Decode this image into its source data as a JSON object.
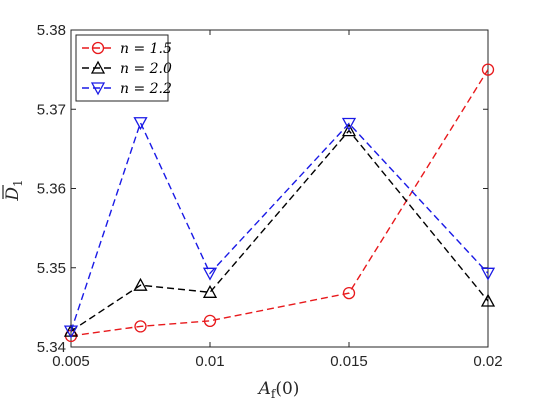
{
  "chart_data": {
    "type": "line",
    "x": [
      0.005,
      0.0075,
      0.01,
      0.015,
      0.02
    ],
    "xlabel": "A_f(0)",
    "ylabel": "D̄_1",
    "xlim": [
      0.005,
      0.02
    ],
    "ylim": [
      5.34,
      5.38
    ],
    "xticks": [
      0.005,
      0.01,
      0.015,
      0.02
    ],
    "xtick_labels": [
      "0.005",
      "0.01",
      "0.015",
      "0.02"
    ],
    "yticks": [
      5.34,
      5.35,
      5.36,
      5.37,
      5.38
    ],
    "ytick_labels": [
      "5.34",
      "5.35",
      "5.36",
      "5.37",
      "5.38"
    ],
    "grid": false,
    "legend_position": "top-left",
    "series": [
      {
        "name": "n = 1.5",
        "color": "#e8191c",
        "marker": "circle",
        "values": [
          5.3414,
          5.3426,
          5.3433,
          5.3468,
          5.375
        ]
      },
      {
        "name": "n = 2.0",
        "color": "#000000",
        "marker": "triangle-up",
        "values": [
          5.342,
          5.3478,
          5.3469,
          5.3673,
          5.3458
        ]
      },
      {
        "name": "n = 2.2",
        "color": "#1a1ae6",
        "marker": "triangle-down",
        "values": [
          5.342,
          5.3683,
          5.3493,
          5.3682,
          5.3493
        ]
      }
    ]
  }
}
